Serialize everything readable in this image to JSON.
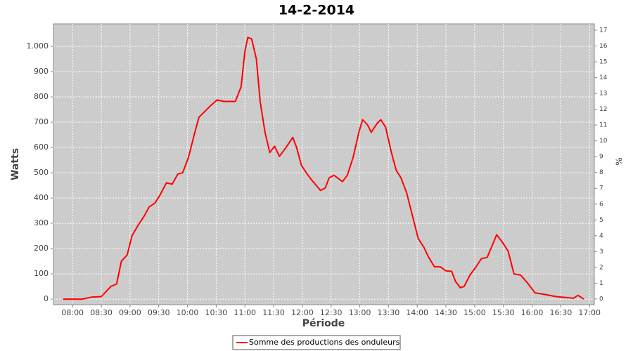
{
  "chart_data": {
    "type": "line",
    "title": "14-2-2014",
    "x_label": "Période",
    "y_label": "Watts",
    "y2_label": "%",
    "x": [
      "07:50",
      "08:00",
      "08:10",
      "08:20",
      "08:30",
      "08:40",
      "08:46",
      "08:51",
      "08:57",
      "09:02",
      "09:08",
      "09:15",
      "09:20",
      "09:26",
      "09:31",
      "09:38",
      "09:44",
      "09:50",
      "09:55",
      "10:01",
      "10:07",
      "10:12",
      "10:18",
      "10:24",
      "10:31",
      "10:38",
      "10:50",
      "10:56",
      "11:00",
      "11:03",
      "11:07",
      "11:12",
      "11:16",
      "11:21",
      "11:26",
      "11:31",
      "11:36",
      "11:42",
      "11:50",
      "11:54",
      "11:59",
      "12:05",
      "12:10",
      "12:19",
      "12:24",
      "12:28",
      "12:33",
      "12:42",
      "12:47",
      "12:53",
      "12:59",
      "13:03",
      "13:08",
      "13:12",
      "13:18",
      "13:22",
      "13:27",
      "13:33",
      "13:38",
      "13:43",
      "13:49",
      "13:55",
      "14:01",
      "14:07",
      "14:12",
      "14:18",
      "14:24",
      "14:30",
      "14:36",
      "14:40",
      "14:45",
      "14:49",
      "14:55",
      "15:01",
      "15:07",
      "15:13",
      "15:17",
      "15:23",
      "15:29",
      "15:35",
      "15:41",
      "15:48",
      "15:55",
      "16:03",
      "16:14",
      "16:25",
      "16:39",
      "16:43",
      "16:48",
      "16:54"
    ],
    "series": [
      {
        "name": "Somme des productions des onduleurs",
        "color": "#ff0000",
        "values": [
          0,
          0,
          0,
          8,
          10,
          50,
          60,
          150,
          175,
          250,
          290,
          330,
          365,
          380,
          410,
          460,
          455,
          495,
          500,
          560,
          650,
          720,
          742,
          765,
          788,
          782,
          782,
          840,
          980,
          1035,
          1030,
          950,
          780,
          660,
          580,
          605,
          565,
          595,
          640,
          600,
          530,
          495,
          470,
          430,
          440,
          480,
          490,
          465,
          490,
          560,
          660,
          710,
          690,
          660,
          695,
          710,
          680,
          580,
          510,
          480,
          420,
          330,
          240,
          205,
          165,
          128,
          128,
          112,
          110,
          70,
          45,
          50,
          95,
          125,
          160,
          165,
          200,
          255,
          225,
          190,
          100,
          95,
          65,
          25,
          18,
          10,
          5,
          3,
          15,
          0
        ]
      }
    ],
    "xlim": [
      "07:40",
      "17:05"
    ],
    "xticks": [
      "08:00",
      "08:30",
      "09:00",
      "09:30",
      "10:00",
      "10:30",
      "11:00",
      "11:30",
      "12:00",
      "12:30",
      "13:00",
      "13:30",
      "14:00",
      "14:30",
      "15:00",
      "15:30",
      "16:00",
      "16:30",
      "17:00"
    ],
    "ylim": [
      -22,
      1089
    ],
    "yticks": [
      0,
      100,
      200,
      300,
      400,
      500,
      600,
      700,
      800,
      900,
      {
        "value": 1000,
        "label": "1.000"
      }
    ],
    "y2lim": [
      -0.36,
      17.4
    ],
    "y2ticks": [
      0,
      1,
      2,
      3,
      4,
      5,
      6,
      7,
      8,
      9,
      10,
      11,
      12,
      13,
      14,
      15,
      16,
      17
    ],
    "grid": true,
    "legend": "bottom"
  }
}
